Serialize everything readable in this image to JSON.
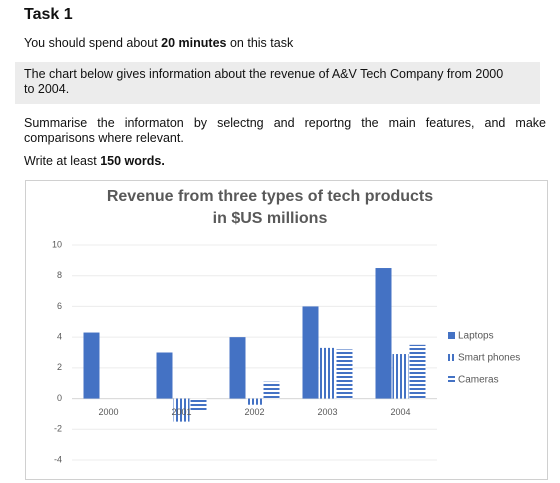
{
  "header": {
    "title": "Task 1"
  },
  "instruction": {
    "before": "You should spend about",
    "bold": "20 minutes",
    "after": "on this task"
  },
  "prompt": "The chart below gives information about the revenue of A&V Tech Company from 2000 to 2004.",
  "task": "Summarise the informaton by selectng and reportng the main features, and make comparisons where relevant.",
  "word_count": {
    "before": "Write at least",
    "bold": "150 words."
  },
  "chart_data": {
    "type": "bar",
    "title": [
      "Revenue from three types of tech products",
      "in $US millions"
    ],
    "categories": [
      "2000",
      "2001",
      "2002",
      "2003",
      "2004"
    ],
    "series": [
      {
        "name": "Laptops",
        "color": "#4472c4",
        "pattern": "solid",
        "values": [
          4.3,
          3,
          4,
          6,
          8.5
        ]
      },
      {
        "name": "Smart phones",
        "color": "#4472c4",
        "pattern": "vertical",
        "values": [
          0,
          -1.5,
          -0.4,
          3.3,
          2.9
        ]
      },
      {
        "name": "Cameras",
        "color": "#4472c4",
        "pattern": "horizontal",
        "values": [
          0,
          -0.8,
          1.1,
          3.2,
          3.5
        ]
      }
    ],
    "ylim": [
      -4,
      10
    ],
    "yticks": [
      -4,
      -2,
      0,
      2,
      4,
      6,
      8,
      10
    ],
    "grid": true,
    "legend": "right"
  }
}
